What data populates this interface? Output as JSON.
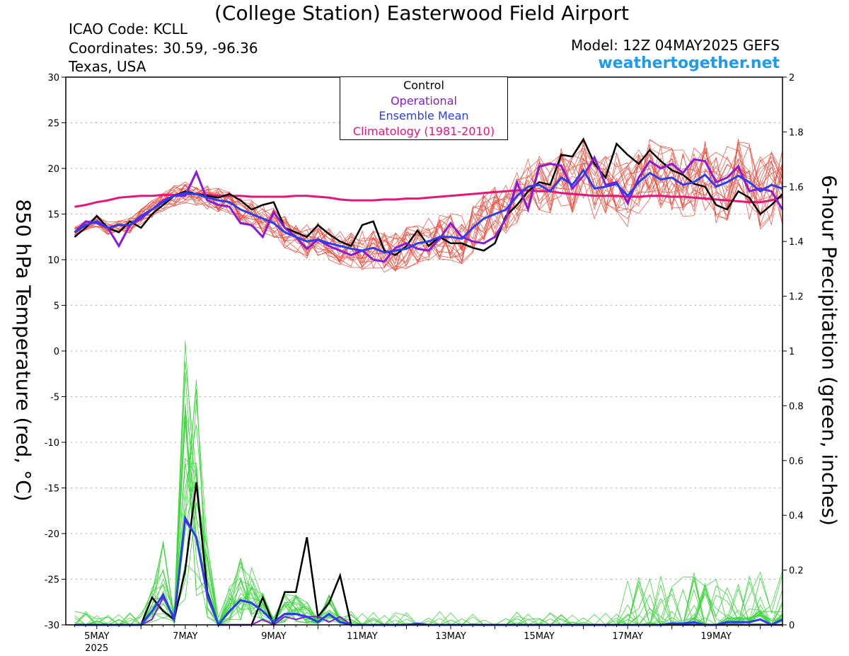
{
  "header": {
    "title": "(College Station) Easterwood Field Airport",
    "icao": "ICAO Code: KCLL",
    "coordinates": "Coordinates: 30.59, -96.36",
    "region": "Texas, USA",
    "model": "Model: 12Z 04MAY2025 GEFS",
    "site": "weathertogether.net"
  },
  "legend": {
    "control": "Control",
    "operational": "Operational",
    "ensemble_mean": "Ensemble Mean",
    "climatology": "Climatology (1981-2010)"
  },
  "colors": {
    "control": "#000000",
    "operational": "#8a1ad6",
    "ensemble_mean": "#2a3ef0",
    "climatology": "#e6157a",
    "members_temp": "#f04c3c",
    "members_precip": "#3fd63f",
    "site": "#1e9be9"
  },
  "chart_data": {
    "type": "line",
    "ylabel_left": "850 hPa Temperature (red, °C)",
    "ylabel_right": "6-hour Precipitation (green, inches)",
    "ylim_left": [
      -30,
      30
    ],
    "ylim_right": [
      0,
      2
    ],
    "yticks_left": [
      "30",
      "25",
      "20",
      "15",
      "10",
      "5",
      "0",
      "-5",
      "-10",
      "-15",
      "-20",
      "-25",
      "-30"
    ],
    "yticks_right": [
      "2",
      "1.8",
      "1.6",
      "1.4",
      "1.2",
      "1",
      "0.8",
      "0.6",
      "0.4",
      "0.2",
      "0"
    ],
    "x_ticks": [
      "5MAY",
      "7MAY",
      "9MAY",
      "11MAY",
      "13MAY",
      "15MAY",
      "17MAY",
      "19MAY"
    ],
    "x_year": "2025",
    "x_start": "2025-05-04T12Z",
    "x_step_hours": 6,
    "x_range_days": [
      4.3,
      20.5
    ],
    "grid": "dotted horizontal",
    "temperature": {
      "control": [
        12.5,
        13.5,
        14.8,
        13.5,
        13.0,
        14.2,
        13.5,
        15.0,
        16.0,
        17.0,
        17.5,
        17.2,
        17.0,
        16.8,
        17.2,
        16.5,
        15.5,
        16.0,
        16.3,
        13.5,
        13.0,
        12.5,
        13.8,
        12.8,
        12.0,
        11.5,
        13.8,
        14.2,
        11.0,
        10.5,
        11.5,
        13.2,
        11.5,
        12.5,
        11.8,
        11.8,
        11.3,
        11.0,
        11.8,
        14.8,
        16.0,
        17.5,
        18.5,
        18.2,
        21.5,
        21.3,
        23.2,
        20.5,
        19.0,
        22.7,
        21.5,
        20.5,
        22.0,
        20.8,
        19.8,
        19.3,
        18.3,
        18.0,
        16.0,
        15.5,
        17.5,
        16.8,
        15.0,
        16.0,
        17.2
      ],
      "operational": [
        13.0,
        14.2,
        14.0,
        13.5,
        11.5,
        13.8,
        14.5,
        15.5,
        16.5,
        17.0,
        17.0,
        19.6,
        16.5,
        16.0,
        15.8,
        14.0,
        13.8,
        12.5,
        15.2,
        13.5,
        12.5,
        11.2,
        12.2,
        11.5,
        11.0,
        10.5,
        11.0,
        10.0,
        9.8,
        11.3,
        11.8,
        11.2,
        11.0,
        12.3,
        14.0,
        12.5,
        12.0,
        11.8,
        12.5,
        14.5,
        18.5,
        15.5,
        20.2,
        20.5,
        20.3,
        17.8,
        19.2,
        21.2,
        18.2,
        18.5,
        16.2,
        19.0,
        20.8,
        20.0,
        20.5,
        19.5,
        21.0,
        20.8,
        18.5,
        19.0,
        20.2,
        17.5,
        17.8,
        17.5,
        15.5
      ],
      "ensemble_mean": [
        13.0,
        13.8,
        14.2,
        13.5,
        13.8,
        13.8,
        14.8,
        15.5,
        16.3,
        17.0,
        17.3,
        17.2,
        16.8,
        16.5,
        16.3,
        15.5,
        15.0,
        14.5,
        14.0,
        13.0,
        12.5,
        12.0,
        12.2,
        11.8,
        11.5,
        11.2,
        11.0,
        11.3,
        10.8,
        11.0,
        11.2,
        11.8,
        12.0,
        12.5,
        12.5,
        12.3,
        13.5,
        14.5,
        15.0,
        15.5,
        17.0,
        18.0,
        18.2,
        17.5,
        19.0,
        18.2,
        19.8,
        17.8,
        18.0,
        18.3,
        17.0,
        18.5,
        19.5,
        18.8,
        19.0,
        18.2,
        18.5,
        19.3,
        18.0,
        18.5,
        19.2,
        18.5,
        17.5,
        18.2,
        17.8
      ],
      "climatology": [
        15.8,
        16.0,
        16.3,
        16.5,
        16.8,
        16.9,
        17.0,
        17.0,
        17.1,
        17.1,
        17.2,
        17.2,
        17.1,
        17.0,
        17.0,
        17.0,
        16.9,
        16.9,
        16.9,
        16.9,
        17.0,
        17.0,
        16.9,
        16.8,
        16.6,
        16.5,
        16.5,
        16.5,
        16.6,
        16.6,
        16.7,
        16.7,
        16.8,
        16.9,
        17.0,
        17.1,
        17.2,
        17.3,
        17.4,
        17.5,
        17.6,
        17.6,
        17.5,
        17.5,
        17.3,
        17.2,
        17.1,
        17.0,
        17.0,
        17.0,
        16.9,
        16.9,
        17.0,
        17.0,
        16.9,
        16.9,
        16.8,
        16.7,
        16.6,
        16.5,
        16.4,
        16.3,
        16.3,
        16.5,
        16.9
      ]
    },
    "precipitation": {
      "control": [
        0,
        0,
        0,
        0,
        0,
        0,
        0,
        0.1,
        0.05,
        0.02,
        0.2,
        0.52,
        0.12,
        0.0,
        0,
        0,
        0,
        0.1,
        0,
        0.12,
        0.12,
        0.32,
        0.03,
        0.08,
        0.18,
        0,
        0,
        0,
        0,
        0,
        0,
        0,
        0,
        0,
        0,
        0,
        0,
        0,
        0,
        0,
        0,
        0,
        0,
        0,
        0,
        0,
        0,
        0,
        0,
        0,
        0,
        0,
        0,
        0,
        0,
        0,
        0,
        0,
        0,
        0,
        0,
        0,
        0,
        0,
        0
      ],
      "operational": [
        0,
        0,
        0,
        0,
        0,
        0,
        0,
        0.02,
        0.1,
        0.03,
        0.38,
        0.32,
        0.1,
        0.0,
        0,
        0,
        0,
        0.02,
        0,
        0.03,
        0.02,
        0.03,
        0.03,
        0.01,
        0.03,
        0,
        0,
        0,
        0,
        0,
        0,
        0,
        0,
        0,
        0,
        0,
        0,
        0,
        0,
        0,
        0,
        0,
        0,
        0,
        0,
        0,
        0,
        0,
        0,
        0,
        0,
        0,
        0,
        0,
        0,
        0,
        0,
        0,
        0,
        0,
        0,
        0,
        0,
        0,
        0
      ],
      "ensemble_mean": [
        0,
        0,
        0,
        0,
        0,
        0,
        0,
        0.05,
        0.11,
        0.02,
        0.39,
        0.32,
        0.11,
        0.0,
        0.05,
        0.09,
        0.08,
        0.05,
        0.01,
        0.04,
        0.04,
        0.03,
        0.01,
        0.04,
        0.01,
        0.0,
        0.0,
        0.0,
        0.0,
        0.0,
        0.0,
        0.005,
        0.0,
        0.0,
        0.0,
        0.0,
        0.0,
        0.0,
        0.0,
        0.0,
        0.0,
        0.0,
        0.0,
        0.0,
        0.0,
        0.0,
        0.0,
        0.0,
        0.0,
        0.0,
        0.0,
        0.0,
        0.0,
        0.0,
        0.005,
        0.005,
        0.01,
        0.0,
        0.0,
        0.01,
        0.01,
        0.01,
        0.02,
        0.0,
        0.02
      ]
    }
  }
}
